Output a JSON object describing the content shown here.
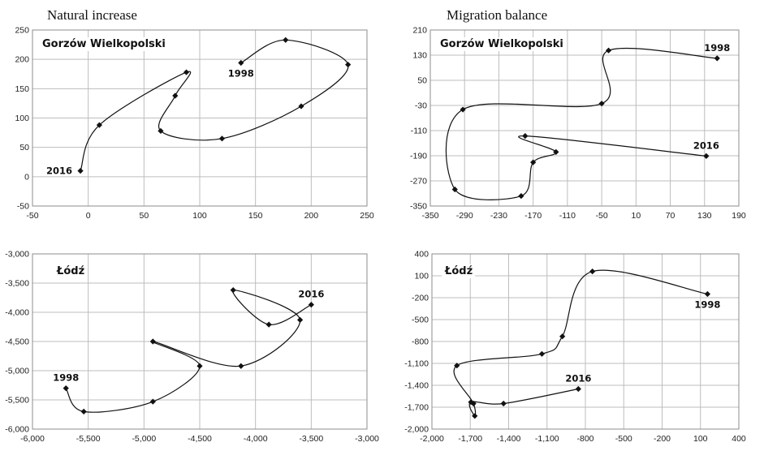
{
  "headings": {
    "natural_increase": "Natural increase",
    "migration_balance": "Migration balance"
  },
  "chart_data": [
    {
      "type": "scatter",
      "smooth": true,
      "city": "Gorzów Wielkopolski",
      "xlim": [
        -50,
        250
      ],
      "ylim": [
        -50,
        250
      ],
      "xticks": [
        -50,
        0,
        50,
        100,
        150,
        200,
        250
      ],
      "yticks": [
        -50,
        0,
        50,
        100,
        150,
        200,
        250
      ],
      "tick_format": "plain",
      "grid": true,
      "points": [
        [
          137,
          194
        ],
        [
          177,
          233
        ],
        [
          233,
          191
        ],
        [
          191,
          120
        ],
        [
          120,
          65
        ],
        [
          65,
          78
        ],
        [
          78,
          138
        ],
        [
          88,
          178
        ],
        [
          10,
          88
        ],
        [
          -7,
          10
        ]
      ],
      "annotations": [
        {
          "text": "1998",
          "x": 137,
          "y": 194,
          "position": "below"
        },
        {
          "text": "2016",
          "x": -7,
          "y": 10,
          "position": "left"
        }
      ]
    },
    {
      "type": "scatter",
      "smooth": true,
      "city": "Gorzów Wielkopolski",
      "xlim": [
        -350,
        190
      ],
      "ylim": [
        -350,
        210
      ],
      "xticks": [
        -350,
        -290,
        -230,
        -170,
        -110,
        -50,
        10,
        70,
        130,
        190
      ],
      "yticks": [
        -350,
        -270,
        -190,
        -110,
        -30,
        50,
        130,
        210
      ],
      "tick_format": "plain",
      "grid": true,
      "points": [
        [
          152,
          120
        ],
        [
          -38,
          145
        ],
        [
          -50,
          -24
        ],
        [
          -293,
          -43
        ],
        [
          -307,
          -297
        ],
        [
          -191,
          -318
        ],
        [
          -170,
          -211
        ],
        [
          -130,
          -178
        ],
        [
          -184,
          -127
        ],
        [
          133,
          -191
        ]
      ],
      "annotations": [
        {
          "text": "1998",
          "x": 152,
          "y": 120,
          "position": "above"
        },
        {
          "text": "2016",
          "x": 133,
          "y": -191,
          "position": "above"
        }
      ]
    },
    {
      "type": "scatter",
      "smooth": true,
      "city": "Łódź",
      "xlim": [
        -6000,
        -3000
      ],
      "ylim": [
        -6000,
        -3000
      ],
      "xticks": [
        -6000,
        -5500,
        -5000,
        -4500,
        -4000,
        -3500,
        -3000
      ],
      "yticks": [
        -6000,
        -5500,
        -5000,
        -4500,
        -4000,
        -3500,
        -3000
      ],
      "tick_format": "thousands",
      "grid": true,
      "points": [
        [
          -5700,
          -5300
        ],
        [
          -5540,
          -5700
        ],
        [
          -4920,
          -5530
        ],
        [
          -4500,
          -4920
        ],
        [
          -4920,
          -4500
        ],
        [
          -4130,
          -4920
        ],
        [
          -3600,
          -4130
        ],
        [
          -4200,
          -3620
        ],
        [
          -3880,
          -4210
        ],
        [
          -3500,
          -3870
        ]
      ],
      "annotations": [
        {
          "text": "1998",
          "x": -5700,
          "y": -5300,
          "position": "above"
        },
        {
          "text": "2016",
          "x": -3500,
          "y": -3870,
          "position": "above"
        }
      ]
    },
    {
      "type": "scatter",
      "smooth": true,
      "city": "Łódź",
      "xlim": [
        -2000,
        400
      ],
      "ylim": [
        -2000,
        400
      ],
      "xticks": [
        -2000,
        -1700,
        -1400,
        -1100,
        -800,
        -500,
        -200,
        100,
        400
      ],
      "yticks": [
        -2000,
        -1700,
        -1400,
        -1100,
        -800,
        -500,
        -200,
        100,
        400
      ],
      "tick_format": "thousands",
      "grid": true,
      "points": [
        [
          155,
          -150
        ],
        [
          -745,
          160
        ],
        [
          -980,
          -730
        ],
        [
          -1140,
          -970
        ],
        [
          -1805,
          -1130
        ],
        [
          -1675,
          -1650
        ],
        [
          -1665,
          -1820
        ],
        [
          -1695,
          -1630
        ],
        [
          -1440,
          -1650
        ],
        [
          -855,
          -1450
        ]
      ],
      "annotations": [
        {
          "text": "1998",
          "x": 155,
          "y": -150,
          "position": "below"
        },
        {
          "text": "2016",
          "x": -855,
          "y": -1450,
          "position": "above"
        }
      ]
    }
  ]
}
